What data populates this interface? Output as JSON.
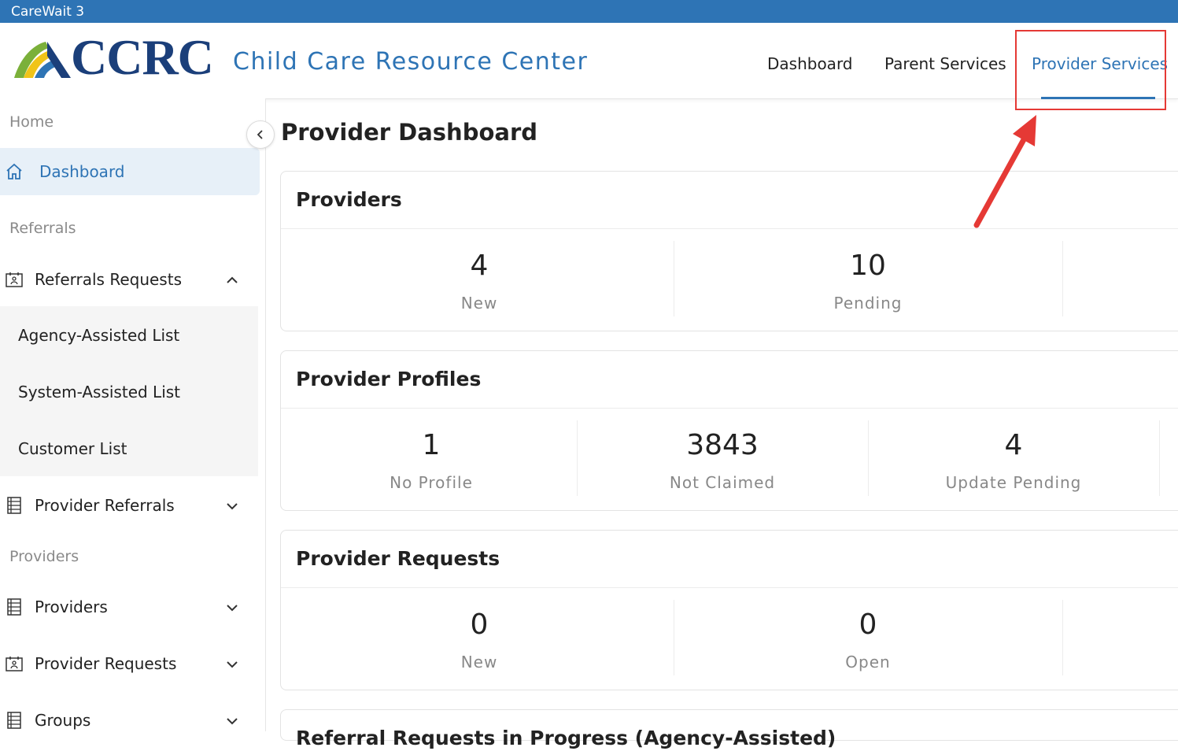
{
  "window": {
    "title": "CareWait 3"
  },
  "header": {
    "logo_text": "CCRC",
    "logo_subtitle": "Child Care Resource Center",
    "nav": [
      {
        "label": "Dashboard"
      },
      {
        "label": "Parent Services"
      },
      {
        "label": "Provider Services"
      }
    ]
  },
  "sidebar": {
    "sections": {
      "home": "Home",
      "referrals": "Referrals",
      "providers": "Providers"
    },
    "items": {
      "dashboard": "Dashboard",
      "referrals_requests": "Referrals Requests",
      "provider_referrals": "Provider Referrals",
      "providers": "Providers",
      "provider_requests": "Provider Requests",
      "groups": "Groups"
    },
    "sub_items": [
      "Agency-Assisted List",
      "System-Assisted List",
      "Customer List"
    ]
  },
  "main": {
    "title": "Provider Dashboard",
    "cards": [
      {
        "title": "Providers",
        "stats": [
          {
            "value": "4",
            "label": "New"
          },
          {
            "value": "10",
            "label": "Pending"
          }
        ]
      },
      {
        "title": "Provider Profiles",
        "stats": [
          {
            "value": "1",
            "label": "No Profile"
          },
          {
            "value": "3843",
            "label": "Not Claimed"
          },
          {
            "value": "4",
            "label": "Update Pending"
          }
        ]
      },
      {
        "title": "Provider Requests",
        "stats": [
          {
            "value": "0",
            "label": "New"
          },
          {
            "value": "0",
            "label": "Open"
          }
        ]
      },
      {
        "title": "Referral Requests in Progress (Agency-Assisted)"
      }
    ]
  },
  "colors": {
    "brand_blue": "#2e74b5",
    "logo_navy": "#1b3f7a",
    "annotation_red": "#e53935"
  }
}
